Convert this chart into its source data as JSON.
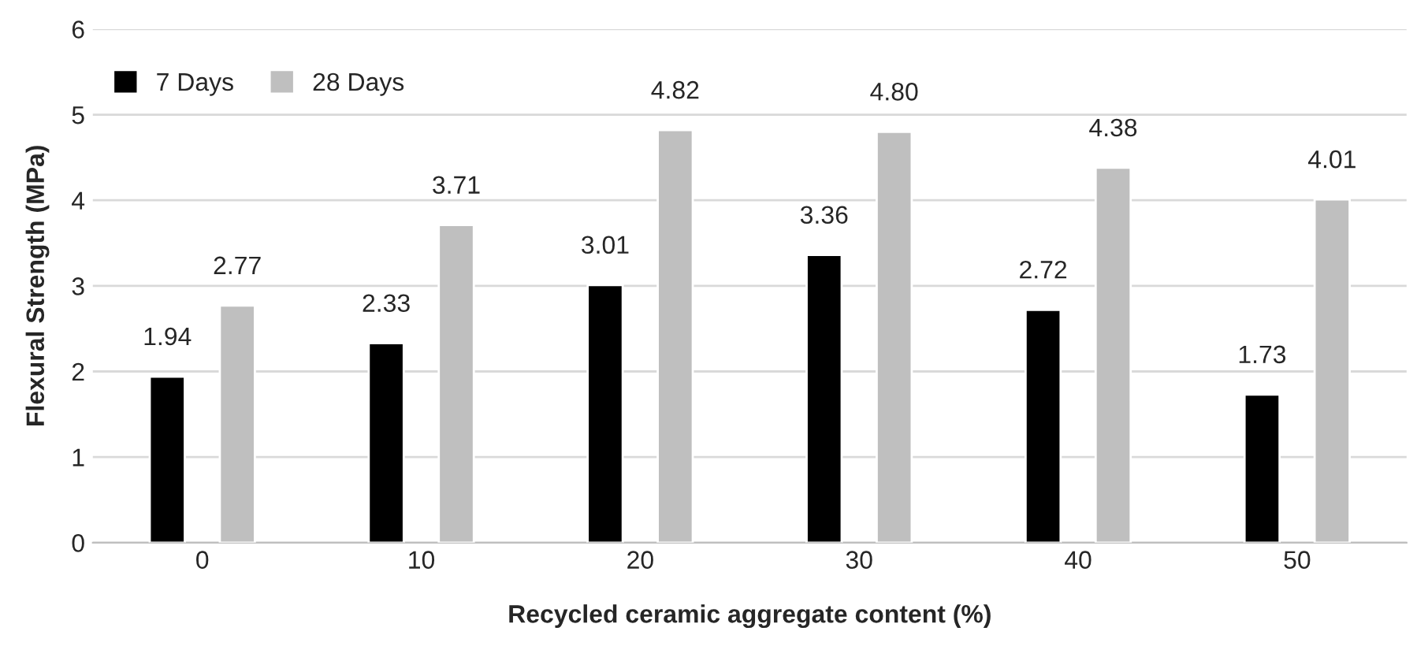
{
  "chart_data": {
    "type": "bar",
    "xlabel": "Recycled ceramic aggregate content (%)",
    "ylabel": "Flexural Strength (MPa)",
    "categories": [
      "0",
      "10",
      "20",
      "30",
      "40",
      "50"
    ],
    "series": [
      {
        "name": "7 Days",
        "color": "#000000",
        "values": [
          1.94,
          2.33,
          3.01,
          3.36,
          2.72,
          1.73
        ],
        "value_labels": [
          "1.94",
          "2.33",
          "3.01",
          "3.36",
          "2.72",
          "1.73"
        ]
      },
      {
        "name": "28 Days",
        "color": "#bfbfbf",
        "values": [
          2.77,
          3.71,
          4.82,
          4.8,
          4.38,
          4.01
        ],
        "value_labels": [
          "2.77",
          "3.71",
          "4.82",
          "4.80",
          "4.38",
          "4.01"
        ]
      }
    ],
    "ylim": [
      0,
      6
    ],
    "yticks": [
      0,
      1,
      2,
      3,
      4,
      5,
      6
    ],
    "grid": "y",
    "legend": "top left"
  }
}
